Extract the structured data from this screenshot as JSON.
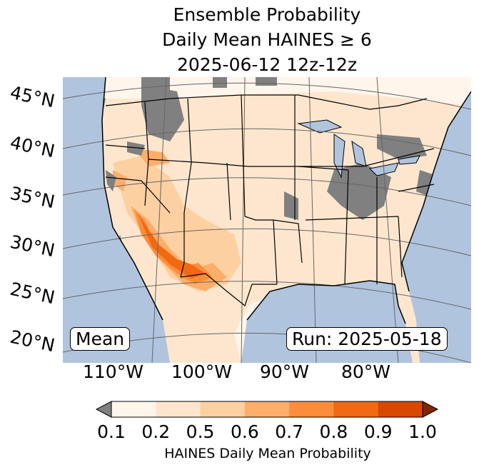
{
  "title": {
    "line1": "Ensemble Probability",
    "line2": "Daily Mean HAINES ≥ 6",
    "line3": "2025-06-12 12z-12z"
  },
  "lat_labels": [
    "45°N",
    "40°N",
    "35°N",
    "30°N",
    "25°N",
    "20°N"
  ],
  "lon_labels": [
    "110°W",
    "100°W",
    "90°W",
    "80°W"
  ],
  "stat_box": "Mean",
  "run_box": "Run: 2025-05-18",
  "colorbar": {
    "label": "HAINES Daily Mean Probability",
    "ticks": [
      "0.1",
      "0.2",
      "0.5",
      "0.6",
      "0.7",
      "0.8",
      "0.9",
      "1.0"
    ],
    "colors": [
      "#fff5eb",
      "#fee6ce",
      "#fdd0a2",
      "#fdae6b",
      "#fd8d3c",
      "#f16913",
      "#d94801"
    ],
    "under": "#808080",
    "over": "#7f2704"
  },
  "colors": {
    "ocean": "#b0c4de",
    "land": "#fee6ce",
    "missing": "#808080"
  }
}
